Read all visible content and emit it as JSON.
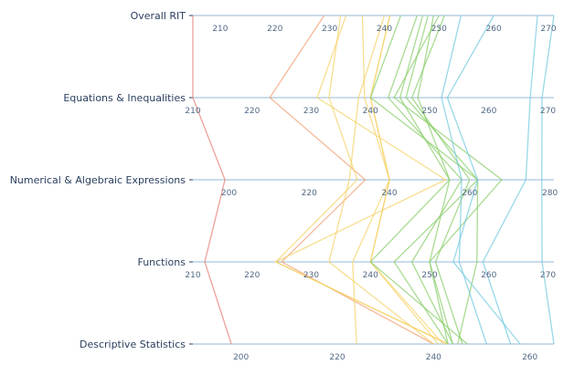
{
  "chart_data": {
    "type": "parallel-coordinates",
    "title": "",
    "dimensions": [
      {
        "name": "Overall RIT",
        "range": [
          205,
          271
        ],
        "ticks": [
          210,
          220,
          230,
          240,
          250,
          260,
          270
        ]
      },
      {
        "name": "Equations & Inequalities",
        "range": [
          210,
          271
        ],
        "ticks": [
          210,
          220,
          230,
          240,
          250,
          260,
          270
        ]
      },
      {
        "name": "Numerical & Algebraic Expressions",
        "range": [
          191,
          281
        ],
        "ticks": [
          200,
          220,
          240,
          260,
          280
        ]
      },
      {
        "name": "Functions",
        "range": [
          210,
          271
        ],
        "ticks": [
          210,
          220,
          230,
          240,
          250,
          260,
          270
        ]
      },
      {
        "name": "Descriptive Statistics",
        "range": [
          190,
          265
        ],
        "ticks": [
          200,
          220,
          240,
          260
        ]
      }
    ],
    "series": [
      {
        "color": "#e8817a",
        "values": [
          205,
          210,
          199,
          212,
          198
        ]
      },
      {
        "color": "#f2a37a",
        "values": [
          229,
          223,
          234,
          225,
          240
        ]
      },
      {
        "color": "#f5d36b",
        "values": [
          232,
          233,
          232,
          224,
          243
        ]
      },
      {
        "color": "#f5d36b",
        "values": [
          233,
          231,
          254,
          224,
          243
        ]
      },
      {
        "color": "#f5d36b",
        "values": [
          236,
          239,
          240,
          237,
          224
        ]
      },
      {
        "color": "#f5d36b",
        "values": [
          240,
          238,
          230,
          233,
          240
        ]
      },
      {
        "color": "#f5d36b",
        "values": [
          241,
          240,
          240,
          240,
          241
        ]
      },
      {
        "color": "#f5d36b",
        "values": [
          241,
          240,
          240,
          240,
          242
        ]
      },
      {
        "color": "#8ccf6e",
        "values": [
          243,
          240,
          262,
          244,
          243
        ]
      },
      {
        "color": "#8ccf6e",
        "values": [
          246,
          243,
          258,
          247,
          244
        ]
      },
      {
        "color": "#8ccf6e",
        "values": [
          247,
          245,
          255,
          240,
          247
        ]
      },
      {
        "color": "#8ccf6e",
        "values": [
          248,
          246,
          262,
          258,
          245
        ]
      },
      {
        "color": "#8ccf6e",
        "values": [
          249,
          248,
          255,
          250,
          244
        ]
      },
      {
        "color": "#8ccf6e",
        "values": [
          250,
          244,
          268,
          250,
          243
        ]
      },
      {
        "color": "#8ccf6e",
        "values": [
          251,
          247,
          260,
          251,
          246
        ]
      },
      {
        "color": "#76cbe0",
        "values": [
          254,
          252,
          258,
          255,
          251
        ]
      },
      {
        "color": "#76cbe0",
        "values": [
          260,
          253,
          262,
          254,
          258
        ]
      },
      {
        "color": "#76cbe0",
        "values": [
          268,
          267,
          274,
          259,
          256
        ]
      },
      {
        "color": "#76cbe0",
        "values": [
          271,
          269,
          278,
          269,
          265
        ]
      }
    ]
  }
}
